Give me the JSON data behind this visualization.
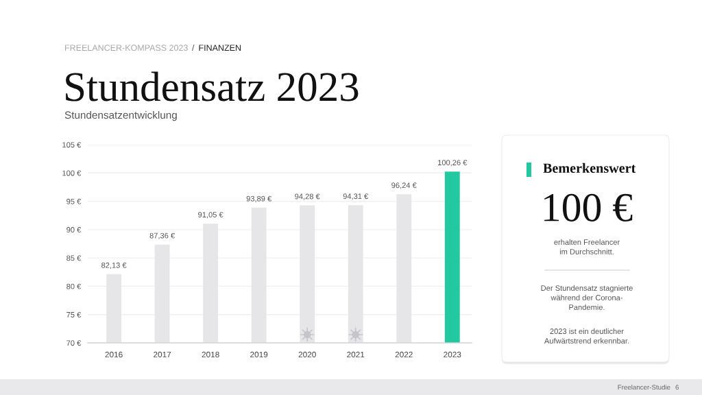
{
  "chart_data": [
    {
      "type": "bar",
      "title": "Stundensatz 2023",
      "subtitle": "Stundensatzentwicklung",
      "categories": [
        "2016",
        "2017",
        "2018",
        "2019",
        "2020",
        "2021",
        "2022",
        "2023"
      ],
      "values": [
        82.13,
        87.36,
        91.05,
        93.89,
        94.28,
        94.31,
        96.24,
        100.26
      ],
      "colors": [
        "#e6e6e9",
        "#e6e6e9",
        "#e6e6e9",
        "#e6e6e9",
        "#e6e6e9",
        "#e6e6e9",
        "#e6e6e9",
        "#22c9a0"
      ],
      "value_labels": [
        "82,13 €",
        "87,36 €",
        "91,05 €",
        "93,89 €",
        "94,28 €",
        "94,31 €",
        "96,24 €",
        "100,26 €"
      ],
      "ylim": [
        70,
        105
      ],
      "yticks": [
        {
          "value": 70,
          "label": "70 €"
        },
        {
          "value": 75,
          "label": "75 €"
        },
        {
          "value": 80,
          "label": "80 €"
        },
        {
          "value": 85,
          "label": "85 €"
        },
        {
          "value": 90,
          "label": "90 €"
        },
        {
          "value": 95,
          "label": "95 €"
        },
        {
          "value": 100,
          "label": "100 €"
        },
        {
          "value": 105,
          "label": "105 €"
        }
      ],
      "grid": "y",
      "annotations": [
        "FREELANCER-KOMPASS 2023",
        "/",
        "FINANZEN",
        "Freelancer-Studie",
        "6"
      ]
    },
    {
      "type": "other",
      "title": "Bemerkenswert",
      "annotations": [
        "100 €",
        "erhalten Freelancer\nim Durchschnitt.",
        "Der Stundensatz stagnierte\nwährend der Corona-\nPandemie.",
        "2023 ist ein deutlicher\nAufwärtstrend erkennbar."
      ]
    }
  ]
}
